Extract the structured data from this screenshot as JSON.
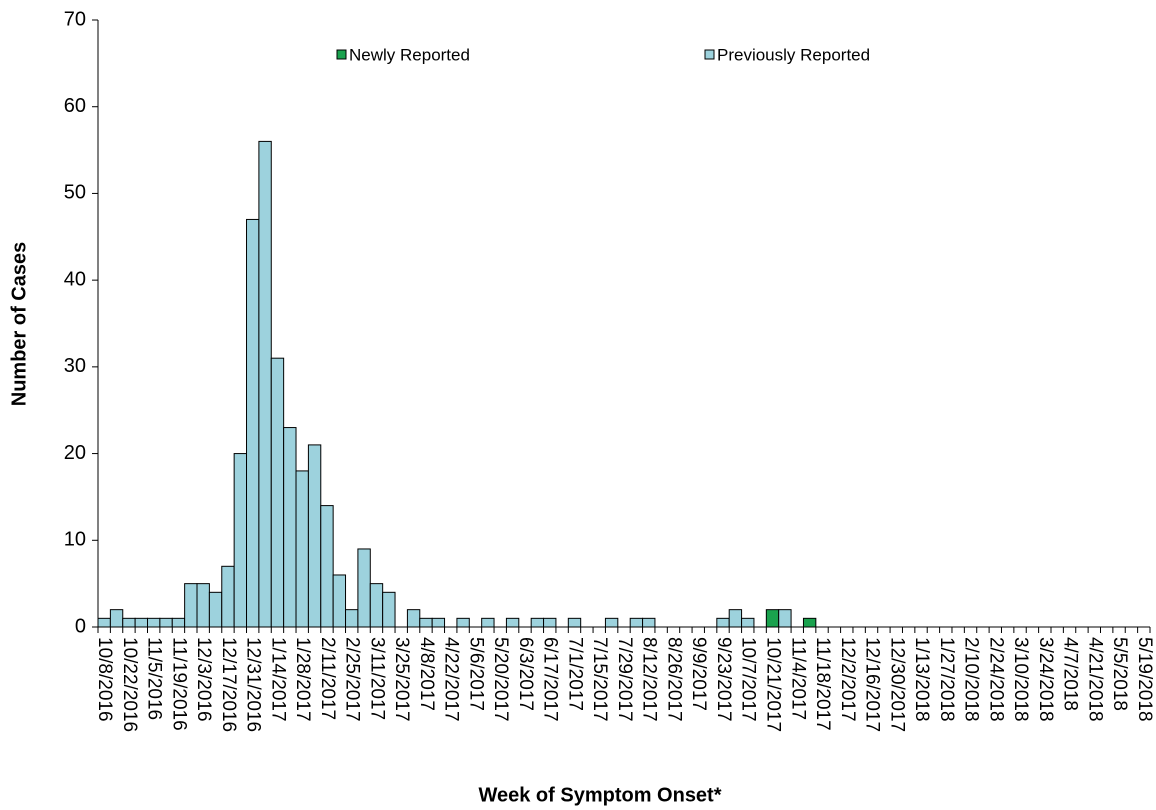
{
  "chart_data": {
    "type": "bar",
    "stacked": true,
    "x_label": "Week of Symptom Onset*",
    "y_label": "Number of Cases",
    "categories": [
      "10/8/2016",
      null,
      "10/22/2016",
      null,
      "11/5/2016",
      null,
      "11/19/2016",
      null,
      "12/3/2016",
      null,
      "12/17/2016",
      null,
      "12/31/2016",
      null,
      "1/14/2017",
      null,
      "1/28/2017",
      null,
      "2/11/2017",
      null,
      "2/25/2017",
      null,
      "3/11/2017",
      null,
      "3/25/2017",
      null,
      "4/8/2017",
      null,
      "4/22/2017",
      null,
      "5/6/2017",
      null,
      "5/20/2017",
      null,
      "6/3/2017",
      null,
      "6/17/2017",
      null,
      "7/1/2017",
      null,
      "7/15/2017",
      null,
      "7/29/2017",
      null,
      "8/12/2017",
      null,
      "8/26/2017",
      null,
      "9/9/2017",
      null,
      "9/23/2017",
      null,
      "10/7/2017",
      null,
      "10/21/2017",
      null,
      "11/4/2017",
      null,
      "11/18/2017",
      null,
      "12/2/2017",
      null,
      "12/16/2017",
      null,
      "12/30/2017",
      null,
      "1/13/2018",
      null,
      "1/27/2018",
      null,
      "2/10/2018",
      null,
      "2/24/2018",
      null,
      "3/10/2018",
      null,
      "3/24/2018",
      null,
      "4/7/2018",
      null,
      "4/21/2018",
      null,
      "5/5/2018",
      null,
      "5/19/2018"
    ],
    "series": [
      {
        "name": "Newly Reported",
        "color": "#1aa24e",
        "values": [
          0,
          0,
          0,
          0,
          0,
          0,
          0,
          0,
          0,
          0,
          0,
          0,
          0,
          0,
          0,
          0,
          0,
          0,
          0,
          0,
          0,
          0,
          0,
          0,
          0,
          0,
          0,
          0,
          0,
          0,
          0,
          0,
          0,
          0,
          0,
          0,
          0,
          0,
          0,
          0,
          0,
          0,
          0,
          0,
          0,
          0,
          0,
          0,
          0,
          0,
          0,
          0,
          0,
          0,
          2,
          0,
          0,
          1,
          0,
          0,
          0,
          0,
          0,
          0,
          0,
          0,
          0,
          0,
          0,
          0,
          0,
          0,
          0,
          0,
          0,
          0,
          0,
          0,
          0,
          0,
          0,
          0,
          0,
          0,
          0
        ]
      },
      {
        "name": "Previously Reported",
        "color": "#9dd2dd",
        "values": [
          1,
          2,
          1,
          1,
          1,
          1,
          1,
          5,
          5,
          4,
          7,
          20,
          47,
          56,
          31,
          23,
          18,
          21,
          14,
          6,
          2,
          9,
          5,
          4,
          0,
          2,
          1,
          1,
          0,
          1,
          0,
          1,
          0,
          1,
          0,
          1,
          1,
          0,
          1,
          0,
          0,
          1,
          0,
          1,
          1,
          0,
          0,
          0,
          0,
          0,
          1,
          2,
          1,
          0,
          0,
          2,
          0,
          0,
          0,
          0,
          0,
          0,
          0,
          0,
          0,
          0,
          0,
          0,
          0,
          0,
          0,
          0,
          0,
          0,
          0,
          0,
          0,
          0,
          0,
          0,
          0,
          0,
          0,
          0,
          0
        ]
      }
    ],
    "ylim": [
      0,
      70
    ],
    "yticks": [
      0,
      10,
      20,
      30,
      40,
      50,
      60,
      70
    ]
  }
}
